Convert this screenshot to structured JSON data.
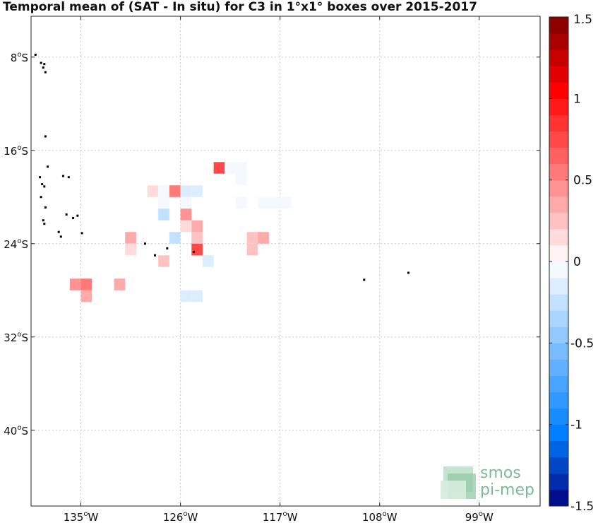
{
  "title": "Temporal mean of (SAT - In situ) for C3 in 1°x1° boxes over 2015-2017",
  "watermark": {
    "line1": "smos",
    "line2": "pi-mep",
    "color": "#7dbb98"
  },
  "map": {
    "lon_range": [
      -139.5,
      -93.5
    ],
    "lat_range": [
      -46.5,
      -4.5
    ],
    "lon_ticks": [
      {
        "value": -135,
        "label": "135",
        "hemi": "W"
      },
      {
        "value": -126,
        "label": "126",
        "hemi": "W"
      },
      {
        "value": -117,
        "label": "117",
        "hemi": "W"
      },
      {
        "value": -108,
        "label": "108",
        "hemi": "W"
      },
      {
        "value": -99,
        "label": "99",
        "hemi": "W"
      }
    ],
    "lat_ticks": [
      {
        "value": -8,
        "label": "8",
        "hemi": "S"
      },
      {
        "value": -16,
        "label": "16",
        "hemi": "S"
      },
      {
        "value": -24,
        "label": "24",
        "hemi": "S"
      },
      {
        "value": -32,
        "label": "32",
        "hemi": "S"
      },
      {
        "value": -40,
        "label": "40",
        "hemi": "S"
      }
    ],
    "grid": true
  },
  "colorbar": {
    "range": [
      -1.5,
      1.5
    ],
    "step": 0.1,
    "tick_values": [
      1.5,
      1,
      0.5,
      0,
      -0.5,
      -1,
      -1.5
    ],
    "tick_labels": [
      "1.5",
      "1",
      "0.5",
      "0",
      "-0.5",
      "-1",
      "-1.5"
    ]
  },
  "chart_data": {
    "type": "heatmap",
    "variable": "SAT - In situ",
    "cells": [
      {
        "lon": -128.5,
        "lat": -19.5,
        "value": 0.15
      },
      {
        "lon": -127.5,
        "lat": -19.5,
        "value": -0.05
      },
      {
        "lon": -126.5,
        "lat": -19.5,
        "value": 0.55
      },
      {
        "lon": -125.5,
        "lat": -19.5,
        "value": -0.15
      },
      {
        "lon": -124.5,
        "lat": -19.5,
        "value": -0.15
      },
      {
        "lon": -127.5,
        "lat": -20.5,
        "value": -0.05
      },
      {
        "lon": -125.5,
        "lat": -20.5,
        "value": -0.05
      },
      {
        "lon": -127.5,
        "lat": -21.5,
        "value": -0.25
      },
      {
        "lon": -125.5,
        "lat": -21.5,
        "value": 0.45
      },
      {
        "lon": -125.5,
        "lat": -22.5,
        "value": 0.1
      },
      {
        "lon": -124.5,
        "lat": -22.5,
        "value": 0.3
      },
      {
        "lon": -130.5,
        "lat": -23.5,
        "value": 0.3
      },
      {
        "lon": -126.5,
        "lat": -23.5,
        "value": -0.25
      },
      {
        "lon": -124.5,
        "lat": -23.5,
        "value": 0.25
      },
      {
        "lon": -130.5,
        "lat": -24.5,
        "value": 0.15
      },
      {
        "lon": -124.5,
        "lat": -24.5,
        "value": 0.7
      },
      {
        "lon": -127.5,
        "lat": -25.5,
        "value": 0.25
      },
      {
        "lon": -123.5,
        "lat": -25.5,
        "value": -0.1
      },
      {
        "lon": -122.5,
        "lat": -17.5,
        "value": 0.7
      },
      {
        "lon": -121.5,
        "lat": -17.5,
        "value": -0.05
      },
      {
        "lon": -120.5,
        "lat": -17.5,
        "value": -0.05
      },
      {
        "lon": -120.5,
        "lat": -18.5,
        "value": -0.05
      },
      {
        "lon": -120.5,
        "lat": -20.5,
        "value": -0.05
      },
      {
        "lon": -118.5,
        "lat": -20.5,
        "value": -0.05
      },
      {
        "lon": -117.5,
        "lat": -20.5,
        "value": -0.05
      },
      {
        "lon": -116.5,
        "lat": -20.5,
        "value": -0.05
      },
      {
        "lon": -119.5,
        "lat": -23.5,
        "value": 0.2
      },
      {
        "lon": -118.5,
        "lat": -23.5,
        "value": 0.3
      },
      {
        "lon": -119.5,
        "lat": -24.5,
        "value": 0.2
      },
      {
        "lon": -135.5,
        "lat": -27.5,
        "value": 0.45
      },
      {
        "lon": -134.5,
        "lat": -27.5,
        "value": 0.55
      },
      {
        "lon": -131.5,
        "lat": -27.5,
        "value": 0.35
      },
      {
        "lon": -134.5,
        "lat": -28.5,
        "value": 0.3
      },
      {
        "lon": -125.5,
        "lat": -28.5,
        "value": -0.1
      },
      {
        "lon": -124.5,
        "lat": -28.5,
        "value": -0.1
      }
    ],
    "islands": [
      {
        "lon": -139.1,
        "lat": -7.8
      },
      {
        "lon": -138.6,
        "lat": -8.5
      },
      {
        "lon": -138.3,
        "lat": -8.6
      },
      {
        "lon": -138.4,
        "lat": -8.9
      },
      {
        "lon": -138.2,
        "lat": -9.3
      },
      {
        "lon": -138.2,
        "lat": -14.8
      },
      {
        "lon": -138.0,
        "lat": -17.4
      },
      {
        "lon": -138.7,
        "lat": -18.3
      },
      {
        "lon": -136.6,
        "lat": -18.2
      },
      {
        "lon": -136.1,
        "lat": -18.3
      },
      {
        "lon": -138.5,
        "lat": -18.9
      },
      {
        "lon": -138.3,
        "lat": -19.1
      },
      {
        "lon": -138.6,
        "lat": -20.0
      },
      {
        "lon": -138.2,
        "lat": -20.9
      },
      {
        "lon": -136.3,
        "lat": -21.5
      },
      {
        "lon": -135.7,
        "lat": -21.8
      },
      {
        "lon": -135.3,
        "lat": -21.6
      },
      {
        "lon": -138.4,
        "lat": -22.0
      },
      {
        "lon": -138.3,
        "lat": -22.3
      },
      {
        "lon": -137.0,
        "lat": -23.0
      },
      {
        "lon": -134.9,
        "lat": -23.1
      },
      {
        "lon": -136.8,
        "lat": -23.4
      },
      {
        "lon": -129.2,
        "lat": -24.0
      },
      {
        "lon": -127.2,
        "lat": -24.4
      },
      {
        "lon": -128.3,
        "lat": -25.0
      },
      {
        "lon": -124.8,
        "lat": -24.7
      },
      {
        "lon": -109.4,
        "lat": -27.1
      },
      {
        "lon": -105.4,
        "lat": -26.5
      }
    ]
  }
}
